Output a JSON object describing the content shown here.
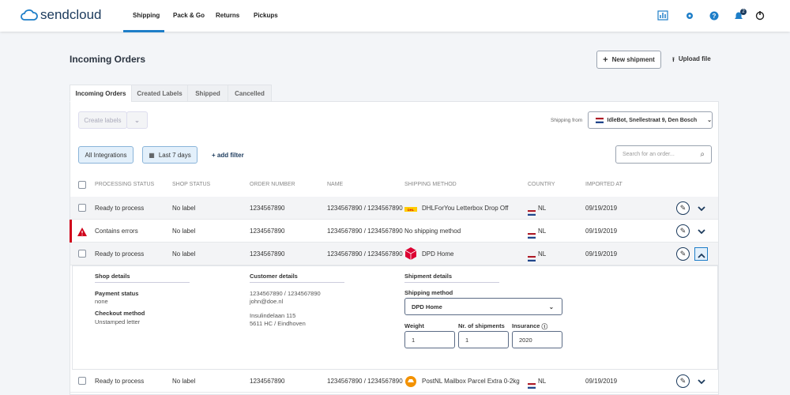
{
  "header": {
    "logo": "sendcloud",
    "nav": [
      "Shipping",
      "Pack & Go",
      "Returns",
      "Pickups"
    ],
    "notification_count": "2"
  },
  "page": {
    "title": "Incoming Orders",
    "actions": [
      "New shipment",
      "Upload file"
    ]
  },
  "tabs": [
    "Incoming Orders",
    "Created Labels",
    "Shipped",
    "Cancelled"
  ],
  "toolbar": {
    "create_labels": "Create labels",
    "shipping_from_label": "Shipping from",
    "shipping_from_value": "IdleBot, Snellestraat 9, Den Bosch",
    "filters": [
      "All Integrations",
      "Last 7 days"
    ],
    "add_filter": "+ add filter",
    "search_placeholder": "Search for an order..."
  },
  "table": {
    "columns": [
      "PROCESSING STATUS",
      "SHOP STATUS",
      "ORDER NUMBER",
      "NAME",
      "SHIPPING METHOD",
      "COUNTRY",
      "IMPORTED AT"
    ],
    "rows": [
      [
        "Ready to process",
        "No label",
        "1234567890",
        "1234567890 / 1234567890",
        "DHLForYou Letterbox Drop Off",
        "NL",
        "09/19/2019"
      ],
      [
        "Contains errors",
        "No label",
        "1234567890",
        "1234567890 / 1234567890",
        "No shipping method",
        "NL",
        "09/19/2019"
      ],
      [
        "Ready to process",
        "No label",
        "1234567890",
        "1234567890 / 1234567890",
        "DPD Home",
        "NL",
        "09/19/2019"
      ],
      [
        "Ready to process",
        "No label",
        "1234567890",
        "1234567890 / 1234567890",
        "PostNL Mailbox Parcel Extra 0-2kg",
        "NL",
        "09/19/2019"
      ]
    ]
  },
  "details": {
    "shop": {
      "title": "Shop details",
      "fields": [
        {
          "label": "Payment status",
          "value": "none"
        },
        {
          "label": "Checkout method",
          "value": "Unstamped letter"
        }
      ]
    },
    "customer": {
      "title": "Customer details",
      "lines": [
        "1234567890 / 1234567890",
        "john@doe.nl",
        "Insulindelaan 115",
        "5611 HC / Eindhoven"
      ]
    },
    "shipment": {
      "title": "Shipment details",
      "method_label": "Shipping method",
      "method_value": "DPD Home",
      "fields": [
        {
          "label": "Weight",
          "value": "1"
        },
        {
          "label": "Nr. of shipments",
          "value": "1"
        },
        {
          "label": "Insurance",
          "value": "2020"
        }
      ]
    }
  }
}
